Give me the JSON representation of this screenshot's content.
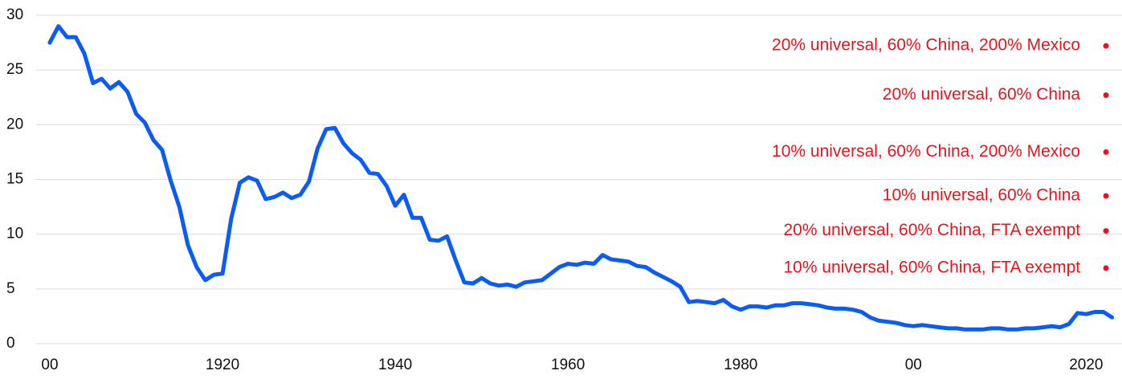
{
  "chart_data": {
    "type": "line",
    "x": [
      1900,
      1901,
      1902,
      1903,
      1904,
      1905,
      1906,
      1907,
      1908,
      1909,
      1910,
      1911,
      1912,
      1913,
      1914,
      1915,
      1916,
      1917,
      1918,
      1919,
      1920,
      1921,
      1922,
      1923,
      1924,
      1925,
      1926,
      1927,
      1928,
      1929,
      1930,
      1931,
      1932,
      1933,
      1934,
      1935,
      1936,
      1937,
      1938,
      1939,
      1940,
      1941,
      1942,
      1943,
      1944,
      1945,
      1946,
      1947,
      1948,
      1949,
      1950,
      1951,
      1952,
      1953,
      1954,
      1955,
      1956,
      1957,
      1958,
      1959,
      1960,
      1961,
      1962,
      1963,
      1964,
      1965,
      1966,
      1967,
      1968,
      1969,
      1970,
      1971,
      1972,
      1973,
      1974,
      1975,
      1976,
      1977,
      1978,
      1979,
      1980,
      1981,
      1982,
      1983,
      1984,
      1985,
      1986,
      1987,
      1988,
      1989,
      1990,
      1991,
      1992,
      1993,
      1994,
      1995,
      1996,
      1997,
      1998,
      1999,
      2000,
      2001,
      2002,
      2003,
      2004,
      2005,
      2006,
      2007,
      2008,
      2009,
      2010,
      2011,
      2012,
      2013,
      2014,
      2015,
      2016,
      2017,
      2018,
      2019,
      2020,
      2021,
      2022,
      2023
    ],
    "series": [
      {
        "color": "#0a5cf5",
        "values": [
          27.5,
          29,
          28,
          28,
          26.5,
          23.8,
          24.2,
          23.3,
          23.9,
          23.0,
          21,
          20.2,
          18.6,
          17.7,
          14.9,
          12.5,
          9,
          7,
          5.8,
          6.3,
          6.4,
          11.4,
          14.7,
          15.2,
          14.9,
          13.2,
          13.4,
          13.8,
          13.3,
          13.6,
          14.8,
          17.8,
          19.6,
          19.7,
          18.3,
          17.4,
          16.8,
          15.6,
          15.5,
          14.4,
          12.6,
          13.6,
          11.5,
          11.5,
          9.5,
          9.4,
          9.8,
          7.6,
          5.6,
          5.5,
          6.0,
          5.5,
          5.3,
          5.4,
          5.2,
          5.6,
          5.7,
          5.8,
          6.4,
          7.0,
          7.3,
          7.2,
          7.4,
          7.3,
          8.1,
          7.7,
          7.6,
          7.5,
          7.1,
          7.0,
          6.5,
          6.1,
          5.7,
          5.2,
          3.8,
          3.9,
          3.8,
          3.7,
          4.0,
          3.4,
          3.1,
          3.4,
          3.4,
          3.3,
          3.5,
          3.5,
          3.7,
          3.7,
          3.6,
          3.5,
          3.3,
          3.2,
          3.2,
          3.1,
          2.9,
          2.4,
          2.1,
          2.0,
          1.9,
          1.7,
          1.6,
          1.7,
          1.6,
          1.5,
          1.4,
          1.4,
          1.3,
          1.3,
          1.3,
          1.4,
          1.4,
          1.3,
          1.3,
          1.4,
          1.4,
          1.5,
          1.6,
          1.5,
          1.8,
          2.8,
          2.7,
          2.9,
          2.9,
          2.4
        ]
      }
    ],
    "scenarios": {
      "color": "#e8141c",
      "labels": [
        "20% universal, 60% China, 200% Mexico",
        "20% universal, 60% China",
        "10% universal, 60% China, 200% Mexico",
        "10% universal, 60% China",
        "20% universal, 60% China, FTA exempt",
        "10% universal, 60% China, FTA exempt"
      ],
      "x": [
        2022.3,
        2022.3,
        2022.3,
        2022.3,
        2022.3,
        2022.3
      ],
      "values": [
        27.2,
        22.7,
        17.5,
        13.5,
        10.3,
        6.9
      ]
    },
    "xlim": [
      1900,
      2023.5
    ],
    "xticks": [
      {
        "value": 1900,
        "label": "00"
      },
      1920,
      1940,
      1960,
      1980,
      {
        "value": 2000,
        "label": "00"
      },
      2020
    ],
    "ylim": [
      0,
      30
    ],
    "yticks": [
      0,
      5,
      10,
      15,
      20,
      25,
      30
    ],
    "grid": true
  }
}
